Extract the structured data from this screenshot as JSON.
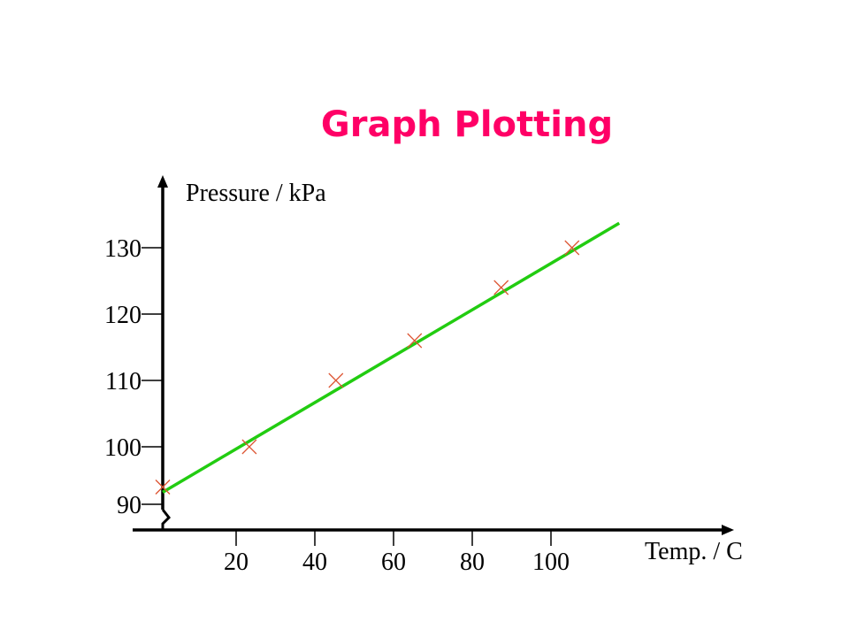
{
  "title": "Graph Plotting",
  "colors": {
    "title": "#ff0066",
    "fit_line": "#22cc11",
    "marker": "#dd5533",
    "axis": "#000000"
  },
  "chart_data": {
    "type": "scatter",
    "title": "Graph Plotting",
    "xlabel": "Temp. / C",
    "ylabel": "Pressure / kPa",
    "x_ticks": [
      20,
      40,
      60,
      80,
      100
    ],
    "y_ticks": [
      90,
      100,
      110,
      120,
      130
    ],
    "y_axis_break": true,
    "grid": false,
    "points": [
      {
        "x": 0,
        "y": 93
      },
      {
        "x": 22,
        "y": 100
      },
      {
        "x": 44,
        "y": 110
      },
      {
        "x": 64,
        "y": 116
      },
      {
        "x": 86,
        "y": 124
      },
      {
        "x": 104,
        "y": 130
      }
    ],
    "fit_line": {
      "x": [
        0,
        116
      ],
      "y": [
        92.1,
        133.7
      ]
    },
    "marker": "x"
  }
}
